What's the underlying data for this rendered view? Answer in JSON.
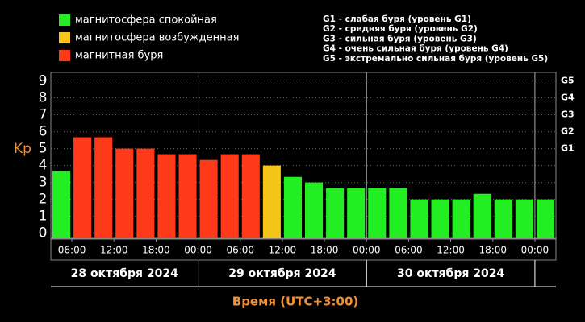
{
  "chart_data": {
    "type": "bar",
    "legend": [
      {
        "label": "магнитосфера спокойная",
        "color": "#22ee22"
      },
      {
        "label": "магнитосфера возбужденная",
        "color": "#f5c518"
      },
      {
        "label": "магнитная буря",
        "color": "#ff3a1a"
      }
    ],
    "storm_legend": [
      "G1 - слабая буря (уровень G1)",
      "G2 - средняя буря (уровень G2)",
      "G3 - сильная буря (уровень G3)",
      "G4 - очень сильная буря (уровень G4)",
      "G5 - экстремально сильная буря (уровень G5)"
    ],
    "y_label": "Kp",
    "x_label": "Время (UTC+3:00)",
    "x": [
      3,
      6,
      9,
      12,
      15,
      18,
      21,
      24,
      27,
      30,
      33,
      36,
      39,
      42,
      45,
      48,
      51,
      54,
      57,
      60,
      63,
      66,
      69,
      72
    ],
    "values": [
      3.67,
      5.67,
      5.67,
      5,
      5,
      4.67,
      4.67,
      4.33,
      4.67,
      4.67,
      4,
      3.33,
      3,
      2.67,
      2.67,
      2.67,
      2.67,
      2,
      2,
      2,
      2.33,
      2,
      2,
      2
    ],
    "colors": [
      "#22ee22",
      "#ff3a1a",
      "#ff3a1a",
      "#ff3a1a",
      "#ff3a1a",
      "#ff3a1a",
      "#ff3a1a",
      "#ff3a1a",
      "#ff3a1a",
      "#ff3a1a",
      "#f5c518",
      "#22ee22",
      "#22ee22",
      "#22ee22",
      "#22ee22",
      "#22ee22",
      "#22ee22",
      "#22ee22",
      "#22ee22",
      "#22ee22",
      "#22ee22",
      "#22ee22",
      "#22ee22",
      "#22ee22"
    ],
    "xlim": [
      3,
      75
    ],
    "xticks": [
      {
        "value": 6,
        "label": "06:00"
      },
      {
        "value": 12,
        "label": "12:00"
      },
      {
        "value": 18,
        "label": "18:00"
      },
      {
        "value": 24,
        "label": "00:00"
      },
      {
        "value": 30,
        "label": "06:00"
      },
      {
        "value": 36,
        "label": "12:00"
      },
      {
        "value": 42,
        "label": "18:00"
      },
      {
        "value": 48,
        "label": "00:00"
      },
      {
        "value": 54,
        "label": "06:00"
      },
      {
        "value": 60,
        "label": "12:00"
      },
      {
        "value": 66,
        "label": "18:00"
      },
      {
        "value": 72,
        "label": "00:00"
      }
    ],
    "days": [
      "28 октября 2024",
      "29 октября 2024",
      "30 октября 2024"
    ],
    "ylim": [
      -0.3,
      9.5
    ],
    "yticks": [
      0,
      1,
      2,
      3,
      4,
      5,
      6,
      7,
      8,
      9
    ],
    "storm_levels": [
      {
        "value": 5,
        "label": "G1"
      },
      {
        "value": 6,
        "label": "G2"
      },
      {
        "value": 7,
        "label": "G3"
      },
      {
        "value": 8,
        "label": "G4"
      },
      {
        "value": 9,
        "label": "G5"
      }
    ],
    "grid": true
  }
}
